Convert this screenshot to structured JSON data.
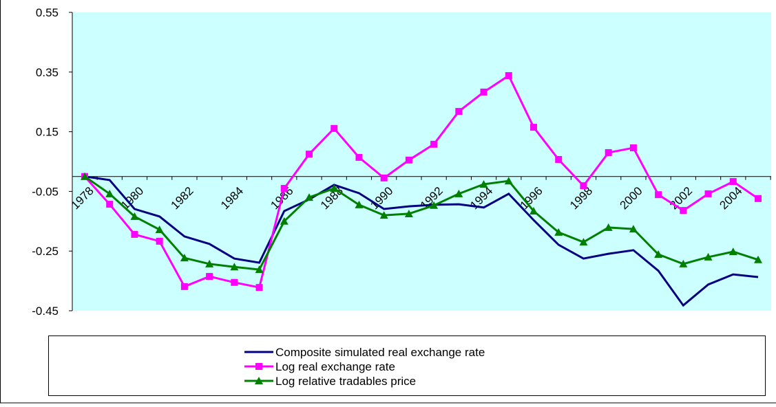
{
  "chart_data": {
    "type": "line",
    "categories": [
      "1978",
      null,
      "1980",
      null,
      "1982",
      null,
      "1984",
      null,
      "1986",
      null,
      "1988",
      null,
      "1990",
      null,
      "1992",
      null,
      "1994",
      null,
      "1996",
      null,
      "1998",
      null,
      "2000",
      null,
      "2002",
      null,
      "2004",
      null
    ],
    "series": [
      {
        "name": "Composite simulated real exchange rate",
        "color": "#000080",
        "marker": "none",
        "values": [
          0,
          -0.012,
          -0.109,
          -0.134,
          -0.201,
          -0.226,
          -0.275,
          -0.289,
          -0.116,
          -0.077,
          -0.028,
          -0.056,
          -0.109,
          -0.1,
          -0.095,
          -0.093,
          -0.104,
          -0.058,
          -0.146,
          -0.229,
          -0.275,
          -0.259,
          -0.247,
          -0.316,
          -0.432,
          -0.362,
          -0.328,
          -0.337
        ]
      },
      {
        "name": "Log real exchange rate",
        "color": "#ff00ff",
        "marker": "square",
        "values": [
          0,
          -0.093,
          -0.194,
          -0.217,
          -0.369,
          -0.335,
          -0.355,
          -0.372,
          -0.04,
          0.075,
          0.161,
          0.064,
          -0.005,
          0.055,
          0.108,
          0.218,
          0.283,
          0.338,
          0.165,
          0.057,
          -0.031,
          0.08,
          0.096,
          -0.061,
          -0.114,
          -0.058,
          -0.017,
          -0.074
        ]
      },
      {
        "name": "Log relative tradables price",
        "color": "#008000",
        "marker": "triangle",
        "values": [
          0,
          -0.058,
          -0.134,
          -0.178,
          -0.273,
          -0.293,
          -0.303,
          -0.312,
          -0.15,
          -0.07,
          -0.04,
          -0.095,
          -0.13,
          -0.125,
          -0.097,
          -0.058,
          -0.026,
          -0.015,
          -0.116,
          -0.187,
          -0.22,
          -0.171,
          -0.176,
          -0.261,
          -0.293,
          -0.27,
          -0.252,
          -0.279
        ]
      }
    ],
    "ylim": [
      -0.45,
      0.55
    ],
    "yticks": [
      -0.45,
      -0.25,
      -0.05,
      0.15,
      0.35,
      0.55
    ],
    "grid": false,
    "legend": "bottom",
    "plot_background": "#ccffff"
  }
}
